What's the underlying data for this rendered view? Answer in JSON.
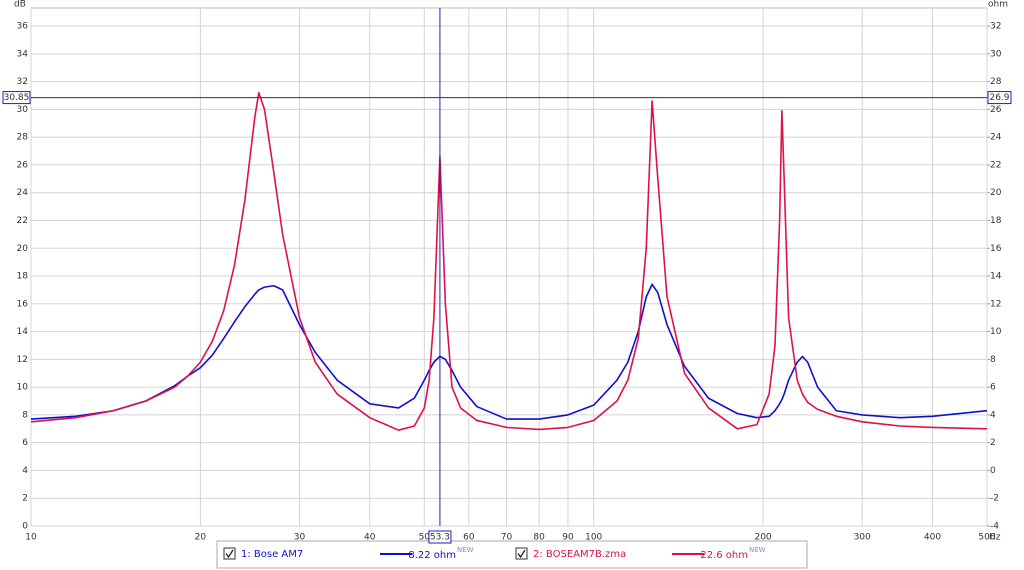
{
  "chart_data": {
    "type": "line",
    "xscale": "log",
    "x_unit": "Hz",
    "y_unit": "dB",
    "y2_unit": "ohm",
    "x": [
      10,
      12,
      14,
      16,
      18,
      19,
      20,
      21,
      22,
      23,
      24,
      25,
      25.4,
      26,
      27,
      28,
      30,
      32,
      35,
      40,
      45,
      48,
      50,
      51,
      52,
      53.3,
      54.5,
      56,
      58,
      62,
      70,
      80,
      90,
      100,
      110,
      115,
      120,
      124,
      127,
      130,
      135,
      145,
      160,
      180,
      195,
      205,
      210,
      214,
      216,
      218,
      222,
      230,
      235,
      240,
      250,
      270,
      300,
      350,
      400,
      500
    ],
    "series": [
      {
        "name": "1: Bose AM7",
        "legend_value": "8.22 ohm",
        "legend_tag": "NEW",
        "color": "#1010d0",
        "axis": "y2",
        "values": [
          3.7,
          3.9,
          4.3,
          5.0,
          6.1,
          6.8,
          7.4,
          8.3,
          9.5,
          10.7,
          11.8,
          12.7,
          13.0,
          13.2,
          13.3,
          13.0,
          10.5,
          8.5,
          6.5,
          4.8,
          4.5,
          5.2,
          6.5,
          7.2,
          7.8,
          8.22,
          8.0,
          7.2,
          6.0,
          4.6,
          3.7,
          3.7,
          4.0,
          4.7,
          6.5,
          7.8,
          10.0,
          12.5,
          13.4,
          12.8,
          10.5,
          7.5,
          5.2,
          4.1,
          3.8,
          3.9,
          4.3,
          4.8,
          5.1,
          5.5,
          6.5,
          7.8,
          8.2,
          7.8,
          6.0,
          4.3,
          4.0,
          3.8,
          3.9,
          4.3
        ]
      },
      {
        "name": "2: BOSEAM7B.zma",
        "legend_value": "22.6 ohm",
        "legend_tag": "NEW",
        "color": "#e0104a",
        "axis": "y2",
        "values": [
          3.5,
          3.8,
          4.3,
          5.0,
          6.0,
          6.8,
          7.8,
          9.3,
          11.5,
          14.8,
          19.5,
          25.5,
          27.2,
          26.0,
          21.5,
          17.0,
          11.0,
          7.8,
          5.5,
          3.8,
          2.9,
          3.2,
          4.5,
          6.5,
          11.0,
          22.6,
          12.0,
          6.0,
          4.5,
          3.6,
          3.1,
          2.95,
          3.1,
          3.6,
          5.0,
          6.5,
          9.5,
          16.0,
          26.6,
          21.0,
          12.5,
          7.0,
          4.5,
          3.0,
          3.3,
          5.5,
          9.0,
          18.0,
          25.9,
          21.0,
          11.0,
          6.5,
          5.5,
          4.9,
          4.4,
          3.9,
          3.5,
          3.2,
          3.1,
          3.0
        ]
      }
    ],
    "xlim": [
      10,
      500
    ],
    "xticks": [
      10,
      20,
      30,
      40,
      50,
      60,
      70,
      80,
      90,
      100,
      200,
      300,
      400,
      500
    ],
    "ylim": [
      0,
      37.3
    ],
    "yticks": [
      0,
      2,
      4,
      6,
      8,
      10,
      12,
      14,
      16,
      18,
      20,
      22,
      24,
      26,
      28,
      30,
      32,
      34,
      36
    ],
    "y2lim": [
      -4,
      33.3
    ],
    "y2ticks": [
      -4,
      -2,
      0,
      2,
      4,
      6,
      8,
      10,
      12,
      14,
      16,
      18,
      20,
      22,
      24,
      26,
      28,
      30,
      32
    ],
    "cursor": {
      "x": 53.3,
      "y": 30.85,
      "y2": 26.9,
      "color": "#2020c0"
    },
    "grid": true
  }
}
